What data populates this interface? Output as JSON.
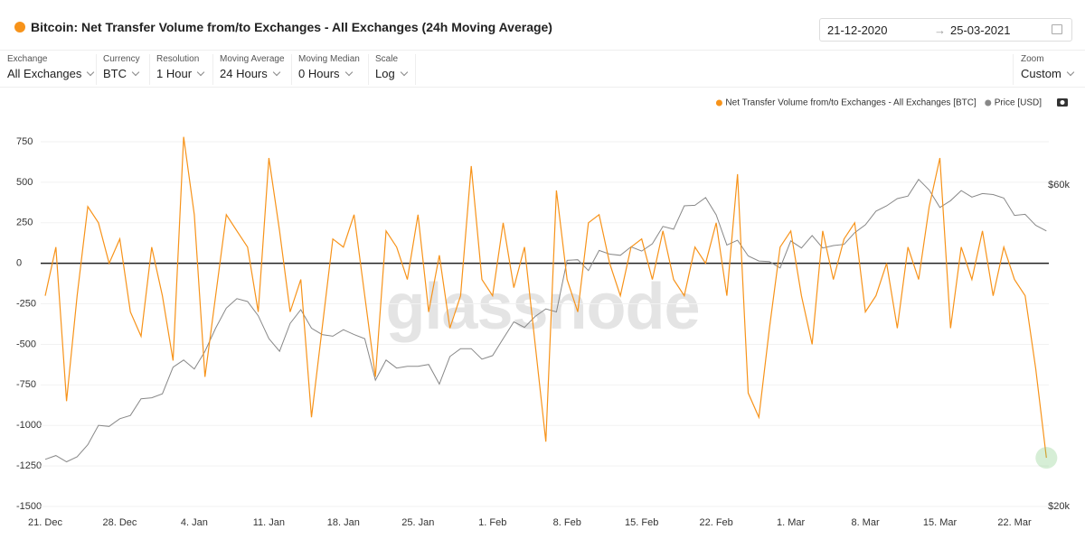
{
  "header": {
    "title": "Bitcoin: Net Transfer Volume from/to Exchanges - All Exchanges (24h Moving Average)",
    "date_from": "21-12-2020",
    "date_to": "25-03-2021"
  },
  "controls": [
    {
      "label": "Exchange",
      "value": "All Exchanges"
    },
    {
      "label": "Currency",
      "value": "BTC"
    },
    {
      "label": "Resolution",
      "value": "1 Hour"
    },
    {
      "label": "Moving Average",
      "value": "24 Hours"
    },
    {
      "label": "Moving Median",
      "value": "0 Hours"
    },
    {
      "label": "Scale",
      "value": "Log"
    }
  ],
  "zoom": {
    "label": "Zoom",
    "value": "Custom"
  },
  "chart_data": {
    "type": "line",
    "watermark": "glassnode",
    "grid": true,
    "legend": "top-right",
    "categories": [
      "21. Dec",
      null,
      null,
      null,
      null,
      null,
      null,
      "28. Dec",
      null,
      null,
      null,
      null,
      null,
      null,
      "4. Jan",
      null,
      null,
      null,
      null,
      null,
      null,
      "11. Jan",
      null,
      null,
      null,
      null,
      null,
      null,
      "18. Jan",
      null,
      null,
      null,
      null,
      null,
      null,
      "25. Jan",
      null,
      null,
      null,
      null,
      null,
      null,
      "1. Feb",
      null,
      null,
      null,
      null,
      null,
      null,
      "8. Feb",
      null,
      null,
      null,
      null,
      null,
      null,
      "15. Feb",
      null,
      null,
      null,
      null,
      null,
      null,
      "22. Feb",
      null,
      null,
      null,
      null,
      null,
      null,
      "1. Mar",
      null,
      null,
      null,
      null,
      null,
      null,
      "8. Mar",
      null,
      null,
      null,
      null,
      null,
      null,
      "15. Mar",
      null,
      null,
      null,
      null,
      null,
      null,
      "22. Mar",
      null,
      null,
      null
    ],
    "ylim": [
      -1500,
      750
    ],
    "yticks": [
      -1500,
      -1250,
      -1000,
      -750,
      -500,
      -250,
      0,
      250,
      500,
      750
    ],
    "y2lim": [
      20000,
      69600
    ],
    "y2scale": "log",
    "y2ticks": [
      {
        "value": 20000,
        "label": "$20k"
      },
      {
        "value": 60000,
        "label": "$60k"
      }
    ],
    "series": [
      {
        "name": "Net Transfer Volume from/to Exchanges - All Exchanges [BTC]",
        "color": "#f7931a",
        "values": [
          -200,
          100,
          -850,
          -200,
          350,
          250,
          0,
          150,
          -300,
          -450,
          100,
          -200,
          -600,
          780,
          300,
          -700,
          -200,
          300,
          200,
          100,
          -300,
          650,
          200,
          -300,
          -100,
          -950,
          -400,
          150,
          100,
          300,
          -200,
          -700,
          200,
          100,
          -100,
          300,
          -300,
          50,
          -400,
          -200,
          600,
          -100,
          -200,
          250,
          -150,
          100,
          -500,
          -1100,
          450,
          -100,
          -300,
          250,
          300,
          0,
          -200,
          100,
          150,
          -100,
          200,
          -100,
          -200,
          100,
          0,
          250,
          -200,
          550,
          -800,
          -950,
          -400,
          100,
          200,
          -200,
          -500,
          200,
          -100,
          150,
          250,
          -300,
          -200,
          0,
          -400,
          100,
          -100,
          350,
          650,
          -400,
          100,
          -100,
          200,
          -200,
          100,
          -100,
          -200,
          -650,
          -1200
        ]
      },
      {
        "name": "Price [USD]",
        "color": "#888888",
        "axis": "y2",
        "values": [
          23500,
          23800,
          23300,
          23700,
          24700,
          26400,
          26300,
          27000,
          27300,
          28900,
          29000,
          29400,
          32200,
          33000,
          32000,
          34000,
          36800,
          39400,
          40700,
          40300,
          38400,
          35500,
          34000,
          37400,
          39200,
          36800,
          36000,
          35800,
          36600,
          36000,
          35500,
          30800,
          33000,
          32100,
          32300,
          32300,
          32500,
          30400,
          33400,
          34300,
          34300,
          33100,
          33500,
          35500,
          37600,
          36900,
          38300,
          39300,
          38900,
          46400,
          46500,
          44800,
          48000,
          47400,
          47200,
          48600,
          47900,
          49100,
          52100,
          51600,
          55900,
          56000,
          57500,
          54200,
          48900,
          49700,
          47100,
          46300,
          46200,
          45200,
          49600,
          48400,
          50500,
          48400,
          48800,
          49000,
          51000,
          52400,
          54900,
          55900,
          57300,
          57800,
          61200,
          59000,
          55600,
          56900,
          58900,
          57600,
          58300,
          58100,
          57400,
          54100,
          54300,
          52300,
          51300
        ]
      }
    ]
  }
}
